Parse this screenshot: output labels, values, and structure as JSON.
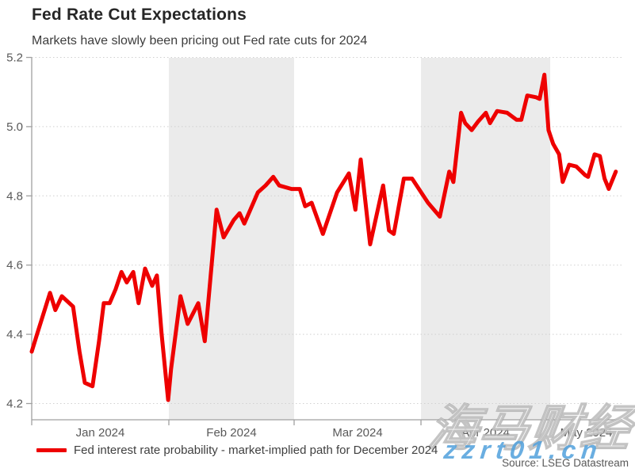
{
  "header": {
    "title": "Fed Rate Cut Expectations",
    "subtitle": "Markets have slowly been pricing out Fed rate cuts for 2024"
  },
  "chart_data": {
    "type": "line",
    "title": "Fed Rate Cut Expectations",
    "subtitle": "Markets have slowly been pricing out Fed rate cuts for 2024",
    "xlabel": "",
    "ylabel": "",
    "ylim": [
      4.15,
      5.2
    ],
    "y_ticks": [
      5.2,
      5.0,
      4.8,
      4.6,
      4.4,
      4.2
    ],
    "grid": "horizontal-dotted",
    "legend_position": "bottom-left",
    "x_axis": {
      "unit": "months",
      "labels": [
        "Jan 2024",
        "Feb 2024",
        "Mar 2024",
        "Apr 2024",
        "May 2024"
      ],
      "boundaries_frac": [
        0.0,
        0.2322,
        0.4443,
        0.6591,
        0.8779,
        1.0
      ]
    },
    "shaded_bands_frac": [
      [
        0.2322,
        0.4443
      ],
      [
        0.6591,
        0.8779
      ]
    ],
    "band_color": "#ebebeb",
    "series": [
      {
        "name": "Fed interest rate probability - market-implied path for December 2024",
        "color": "#ee0000",
        "line_width": 5,
        "points": [
          [
            0.0,
            4.35
          ],
          [
            0.009,
            4.4
          ],
          [
            0.031,
            4.52
          ],
          [
            0.04,
            4.47
          ],
          [
            0.051,
            4.51
          ],
          [
            0.07,
            4.48
          ],
          [
            0.081,
            4.35
          ],
          [
            0.09,
            4.26
          ],
          [
            0.103,
            4.25
          ],
          [
            0.114,
            4.38
          ],
          [
            0.122,
            4.49
          ],
          [
            0.132,
            4.49
          ],
          [
            0.142,
            4.53
          ],
          [
            0.152,
            4.58
          ],
          [
            0.161,
            4.55
          ],
          [
            0.172,
            4.58
          ],
          [
            0.181,
            4.49
          ],
          [
            0.192,
            4.59
          ],
          [
            0.204,
            4.54
          ],
          [
            0.212,
            4.57
          ],
          [
            0.22,
            4.4
          ],
          [
            0.231,
            4.21
          ],
          [
            0.236,
            4.3
          ],
          [
            0.252,
            4.51
          ],
          [
            0.264,
            4.43
          ],
          [
            0.282,
            4.49
          ],
          [
            0.293,
            4.38
          ],
          [
            0.313,
            4.76
          ],
          [
            0.325,
            4.68
          ],
          [
            0.342,
            4.73
          ],
          [
            0.352,
            4.75
          ],
          [
            0.36,
            4.72
          ],
          [
            0.383,
            4.81
          ],
          [
            0.396,
            4.83
          ],
          [
            0.409,
            4.855
          ],
          [
            0.419,
            4.83
          ],
          [
            0.44,
            4.82
          ],
          [
            0.454,
            4.82
          ],
          [
            0.463,
            4.77
          ],
          [
            0.474,
            4.78
          ],
          [
            0.493,
            4.69
          ],
          [
            0.517,
            4.81
          ],
          [
            0.537,
            4.865
          ],
          [
            0.548,
            4.76
          ],
          [
            0.557,
            4.905
          ],
          [
            0.573,
            4.66
          ],
          [
            0.595,
            4.83
          ],
          [
            0.605,
            4.7
          ],
          [
            0.613,
            4.69
          ],
          [
            0.63,
            4.85
          ],
          [
            0.644,
            4.85
          ],
          [
            0.671,
            4.78
          ],
          [
            0.691,
            4.74
          ],
          [
            0.707,
            4.87
          ],
          [
            0.714,
            4.84
          ],
          [
            0.727,
            5.04
          ],
          [
            0.734,
            5.01
          ],
          [
            0.745,
            4.99
          ],
          [
            0.756,
            5.015
          ],
          [
            0.769,
            5.04
          ],
          [
            0.776,
            5.01
          ],
          [
            0.788,
            5.045
          ],
          [
            0.805,
            5.04
          ],
          [
            0.821,
            5.02
          ],
          [
            0.829,
            5.02
          ],
          [
            0.839,
            5.09
          ],
          [
            0.854,
            5.085
          ],
          [
            0.86,
            5.08
          ],
          [
            0.868,
            5.15
          ],
          [
            0.875,
            4.99
          ],
          [
            0.883,
            4.95
          ],
          [
            0.893,
            4.92
          ],
          [
            0.899,
            4.84
          ],
          [
            0.91,
            4.89
          ],
          [
            0.922,
            4.885
          ],
          [
            0.937,
            4.86
          ],
          [
            0.942,
            4.855
          ],
          [
            0.953,
            4.92
          ],
          [
            0.962,
            4.915
          ],
          [
            0.97,
            4.85
          ],
          [
            0.977,
            4.82
          ],
          [
            0.989,
            4.87
          ]
        ]
      }
    ]
  },
  "legend": {
    "swatch_color": "#ee0000",
    "label": "Fed interest rate probability - market-implied path for December 2024"
  },
  "source": "Source: LSEG Datastream",
  "watermark": {
    "line1": "海马财经",
    "line2": "zzrt01.cn",
    "line2_color": "#50a0dc"
  },
  "colors": {
    "line": "#ee0000",
    "band": "#ebebeb",
    "grid": "#d0d0d0",
    "axis": "#a0a0a0",
    "tick_label": "#595959",
    "title": "#262626",
    "subtitle": "#3d3d3d"
  }
}
